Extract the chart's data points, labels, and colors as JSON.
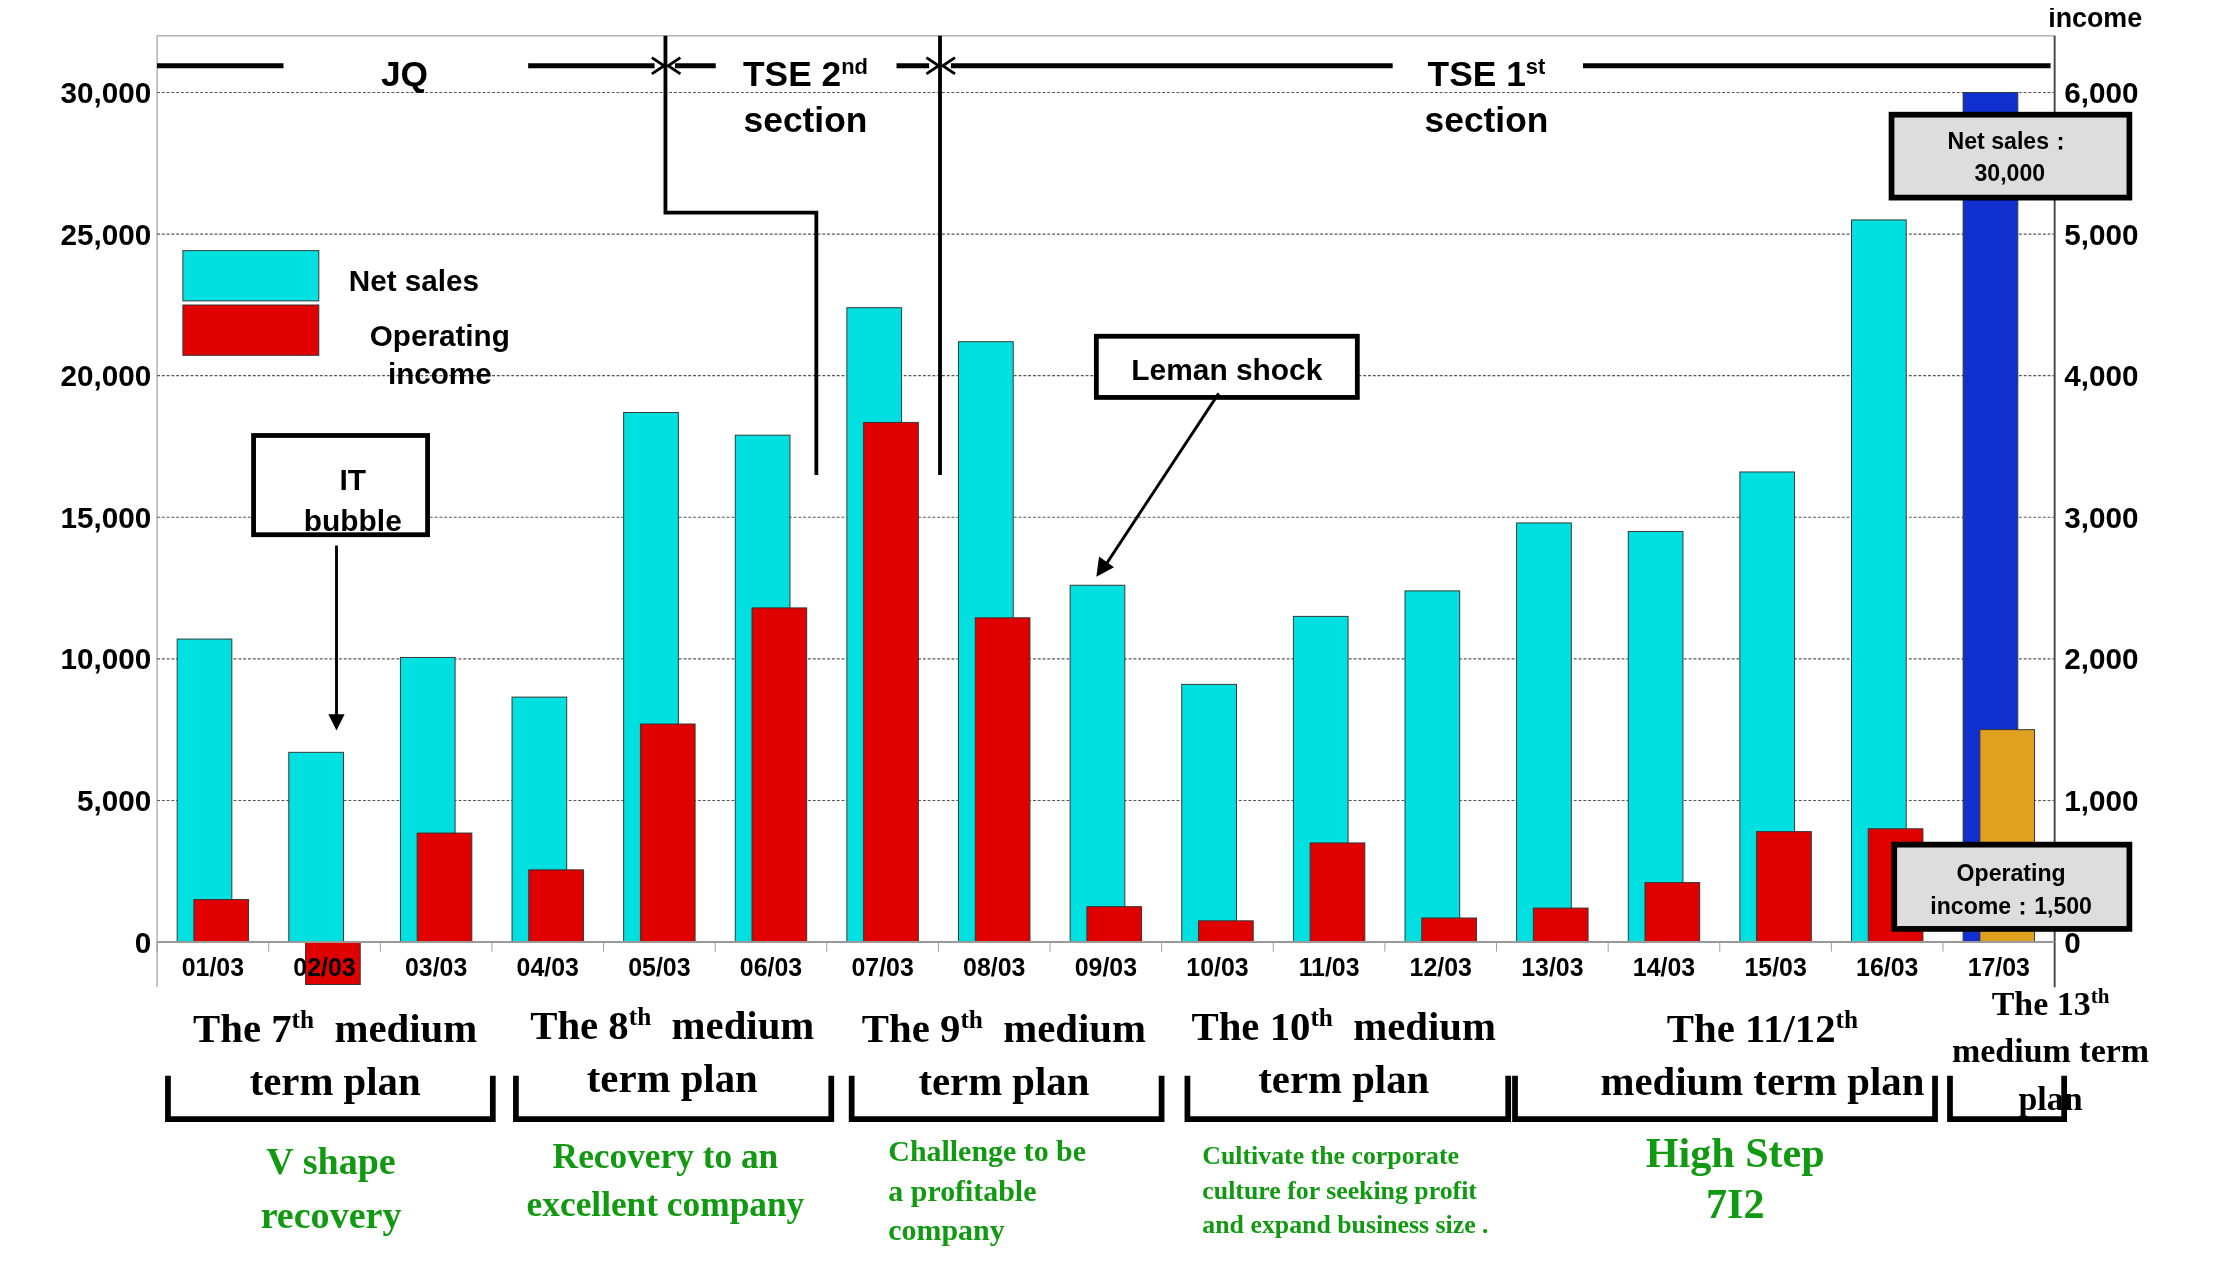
{
  "chart_data": {
    "type": "bar",
    "y2label": "income",
    "categories": [
      "01/03",
      "02/03",
      "03/03",
      "04/03",
      "05/03",
      "06/03",
      "07/03",
      "08/03",
      "09/03",
      "10/03",
      "11/03",
      "12/03",
      "13/03",
      "14/03",
      "15/03",
      "16/03",
      "17/03"
    ],
    "series": [
      {
        "name": "Net sales",
        "color": "#00e0e0",
        "colors": [
          "#00e0e0",
          "#00e0e0",
          "#00e0e0",
          "#00e0e0",
          "#00e0e0",
          "#00e0e0",
          "#00e0e0",
          "#00e0e0",
          "#00e0e0",
          "#00e0e0",
          "#00e0e0",
          "#00e0e0",
          "#00e0e0",
          "#00e0e0",
          "#00e0e0",
          "#00e0e0",
          "#1030d0"
        ],
        "values": [
          10700,
          6700,
          10050,
          8650,
          18700,
          17900,
          22400,
          21200,
          12600,
          9100,
          11500,
          12400,
          14800,
          14500,
          16600,
          25500,
          30000
        ]
      },
      {
        "name": "Operating income",
        "color": "#e00000",
        "axis": "y2",
        "colors": [
          "#e00000",
          "#e00000",
          "#e00000",
          "#e00000",
          "#e00000",
          "#e00000",
          "#e00000",
          "#e00000",
          "#e00000",
          "#e00000",
          "#e00000",
          "#e00000",
          "#e00000",
          "#e00000",
          "#e00000",
          "#e00000",
          "#e0a020"
        ],
        "values": [
          300,
          -300,
          770,
          510,
          1540,
          2360,
          3670,
          2290,
          250,
          150,
          700,
          170,
          240,
          420,
          780,
          800,
          1500
        ]
      }
    ],
    "ylim": [
      -1600,
      32000
    ],
    "yticks": [
      {
        "value": 0,
        "label": "0"
      },
      {
        "value": 5000,
        "label": "5,000"
      },
      {
        "value": 10000,
        "label": "10,000"
      },
      {
        "value": 15000,
        "label": "15,000"
      },
      {
        "value": 20000,
        "label": "20,000"
      },
      {
        "value": 25000,
        "label": "25,000"
      },
      {
        "value": 30000,
        "label": "30,000"
      }
    ],
    "y2lim": [
      -320,
      6400
    ],
    "y2ticks": [
      {
        "value": 0,
        "label": "0"
      },
      {
        "value": 1000,
        "label": "1,000"
      },
      {
        "value": 2000,
        "label": "2,000"
      },
      {
        "value": 3000,
        "label": "3,000"
      },
      {
        "value": 4000,
        "label": "4,000"
      },
      {
        "value": 5000,
        "label": "5,000"
      },
      {
        "value": 6000,
        "label": "6,000"
      }
    ],
    "grid": "y",
    "legend": "top left",
    "annotations": [
      "JQ",
      "TSE 2$^{nd}$\nsection",
      "TSE 1$^{st}$\nsection",
      "IT\nbubble",
      "Leman shock",
      "Net sales：\n30,000",
      "Operating\nincome：1,500",
      "The 7$^{th}$  medium\nterm plan",
      "The 8$^{th}$  medium\nterm plan",
      "The 9$^{th}$  medium\nterm plan",
      "The 10$^{th}$  medium\nterm plan",
      "The 11/12$^{th}$\nmedium term plan",
      "The 13$^{th}$\nmedium term\nplan",
      "V shape\nrecovery",
      "Recovery to an\nexcellent company",
      "Challenge to be\na profitable\ncompany",
      "Cultivate the corporate\nculture for seeking profit\nand expand business size .",
      "High Step\n7I2"
    ]
  }
}
